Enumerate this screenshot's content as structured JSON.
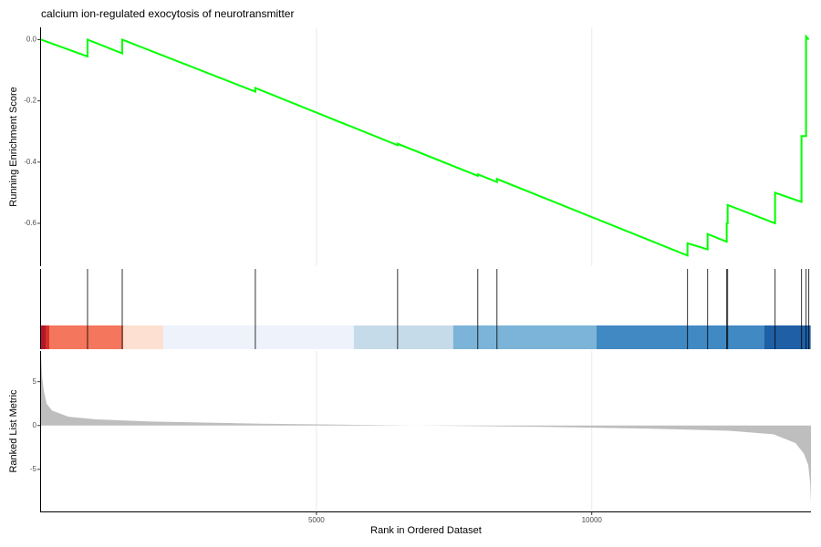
{
  "chart_data": [
    {
      "type": "line",
      "title": "calcium ion-regulated exocytosis of neurotransmitter",
      "ylabel": "Running Enrichment Score",
      "x": [
        0,
        844,
        844,
        1474,
        1474,
        3891,
        3891,
        6474,
        6474,
        7930,
        7930,
        8278,
        8278,
        11738,
        11738,
        12103,
        12103,
        12450,
        12450,
        12467,
        12467,
        13328,
        13328,
        13808,
        13808,
        13891,
        13891,
        13940
      ],
      "series": [
        {
          "name": "Running Enrichment Score",
          "color": "#00ff00",
          "values": [
            0,
            -0.055,
            0.0,
            -0.045,
            0.0,
            -0.17,
            -0.158,
            -0.345,
            -0.34,
            -0.445,
            -0.44,
            -0.465,
            -0.455,
            -0.705,
            -0.665,
            -0.685,
            -0.635,
            -0.66,
            -0.6,
            -0.6,
            -0.54,
            -0.6,
            -0.5,
            -0.53,
            -0.315,
            -0.315,
            0.01,
            0.0
          ]
        }
      ],
      "xlim": [
        0,
        13980
      ],
      "ylim": [
        -0.74,
        0.04
      ],
      "yticks": [
        {
          "value": 0,
          "label": "0.0"
        },
        -0.2,
        -0.4,
        -0.6
      ],
      "grid": true
    },
    {
      "type": "rug",
      "x": [
        844,
        1474,
        3891,
        6474,
        7930,
        8278,
        11738,
        12103,
        12450,
        12467,
        13328,
        13808,
        13891,
        13940
      ],
      "color": "#000000",
      "xlim": [
        0,
        13980
      ],
      "bands": [
        {
          "start": 0,
          "end": 83,
          "color": "#b2182b"
        },
        {
          "start": 83,
          "end": 149,
          "color": "#d6302b"
        },
        {
          "start": 149,
          "end": 1490,
          "color": "#f4765c"
        },
        {
          "start": 1490,
          "end": 2219,
          "color": "#fde0d2"
        },
        {
          "start": 2219,
          "end": 5679,
          "color": "#eef3fb"
        },
        {
          "start": 5679,
          "end": 7483,
          "color": "#c6dbea"
        },
        {
          "start": 7483,
          "end": 10083,
          "color": "#7bb4d8"
        },
        {
          "start": 10083,
          "end": 13129,
          "color": "#4189c3"
        },
        {
          "start": 13129,
          "end": 13974,
          "color": "#1f5fa5"
        }
      ]
    },
    {
      "type": "area",
      "ylabel": "Ranked List Metric",
      "xlabel": "Rank in Ordered Dataset",
      "color": "#bebebe",
      "x": [
        0,
        20,
        50,
        100,
        200,
        500,
        1000,
        2000,
        4000,
        6800,
        9000,
        11000,
        12500,
        13300,
        13700,
        13850,
        13930,
        13965,
        13980
      ],
      "values": [
        8,
        5.5,
        4,
        2.5,
        1.7,
        1,
        0.7,
        0.45,
        0.2,
        0,
        -0.15,
        -0.35,
        -0.6,
        -1,
        -2,
        -3.2,
        -4.5,
        -6.5,
        -8.9
      ],
      "xlim": [
        0,
        13980
      ],
      "ylim": [
        -9.7,
        8.5
      ],
      "yticks": [
        5,
        0,
        -5
      ],
      "xticks": [
        5000,
        10000
      ],
      "grid": true
    }
  ]
}
